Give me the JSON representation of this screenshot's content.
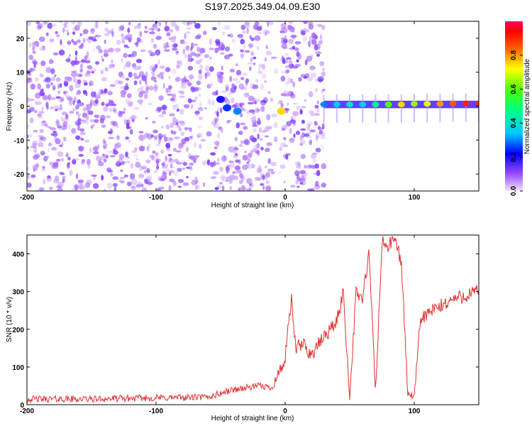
{
  "title": "S197.2025.349.04.09.E30",
  "chart_data": [
    {
      "type": "heatmap",
      "xlabel": "Height of straight line (km)",
      "ylabel": "Frequency (Hz)",
      "xlim": [
        -200,
        150
      ],
      "ylim": [
        -25,
        25
      ],
      "xticks": [
        -200,
        -100,
        0,
        100
      ],
      "yticks": [
        -20,
        -10,
        0,
        10,
        20
      ],
      "colorbar": {
        "label": "Normalized spectral amplitude",
        "range": [
          0,
          1
        ],
        "ticks": [
          "0.0",
          "0.2",
          "0.4",
          "0.6",
          "0.8"
        ]
      },
      "ridge": [
        {
          "x": 30,
          "freq": 0.5,
          "amp": 0.3
        },
        {
          "x": 40,
          "freq": 0.5,
          "amp": 0.35
        },
        {
          "x": 50,
          "freq": 0.5,
          "amp": 0.4
        },
        {
          "x": 60,
          "freq": 0.5,
          "amp": 0.35
        },
        {
          "x": 70,
          "freq": 0.5,
          "amp": 0.45
        },
        {
          "x": 80,
          "freq": 0.5,
          "amp": 0.6
        },
        {
          "x": 90,
          "freq": 0.5,
          "amp": 0.75
        },
        {
          "x": 100,
          "freq": 0.7,
          "amp": 0.65
        },
        {
          "x": 110,
          "freq": 0.7,
          "amp": 0.7
        },
        {
          "x": 120,
          "freq": 0.7,
          "amp": 0.8
        },
        {
          "x": 130,
          "freq": 0.8,
          "amp": 0.85
        },
        {
          "x": 140,
          "freq": 0.8,
          "amp": 0.9
        },
        {
          "x": 150,
          "freq": 0.8,
          "amp": 0.9
        }
      ],
      "features": [
        {
          "x": -50,
          "freq": 2,
          "amp": 0.2
        },
        {
          "x": -45,
          "freq": -0.5,
          "amp": 0.25
        },
        {
          "x": -37,
          "freq": -1.5,
          "amp": 0.3
        },
        {
          "x": -3,
          "freq": -1.5,
          "amp": 0.75
        }
      ]
    },
    {
      "type": "line",
      "xlabel": "Height of straight line (km)",
      "ylabel": "SNR (10 * v/v)",
      "xlim": [
        -200,
        150
      ],
      "ylim": [
        0,
        450
      ],
      "xticks": [
        -200,
        -100,
        0,
        100
      ],
      "yticks": [
        0,
        100,
        200,
        300,
        400
      ],
      "color": "#e03030",
      "series": [
        {
          "name": "SNR",
          "x": [
            -200,
            -150,
            -100,
            -60,
            -40,
            -20,
            -10,
            0,
            3,
            5,
            8,
            15,
            20,
            30,
            40,
            45,
            50,
            55,
            60,
            65,
            70,
            75,
            80,
            85,
            90,
            95,
            100,
            105,
            110,
            120,
            130,
            140,
            150
          ],
          "y": [
            15,
            15,
            18,
            20,
            40,
            50,
            45,
            120,
            220,
            280,
            150,
            160,
            130,
            180,
            220,
            300,
            20,
            300,
            280,
            400,
            30,
            430,
            420,
            440,
            380,
            30,
            20,
            230,
            240,
            260,
            280,
            290,
            300
          ]
        }
      ]
    }
  ]
}
